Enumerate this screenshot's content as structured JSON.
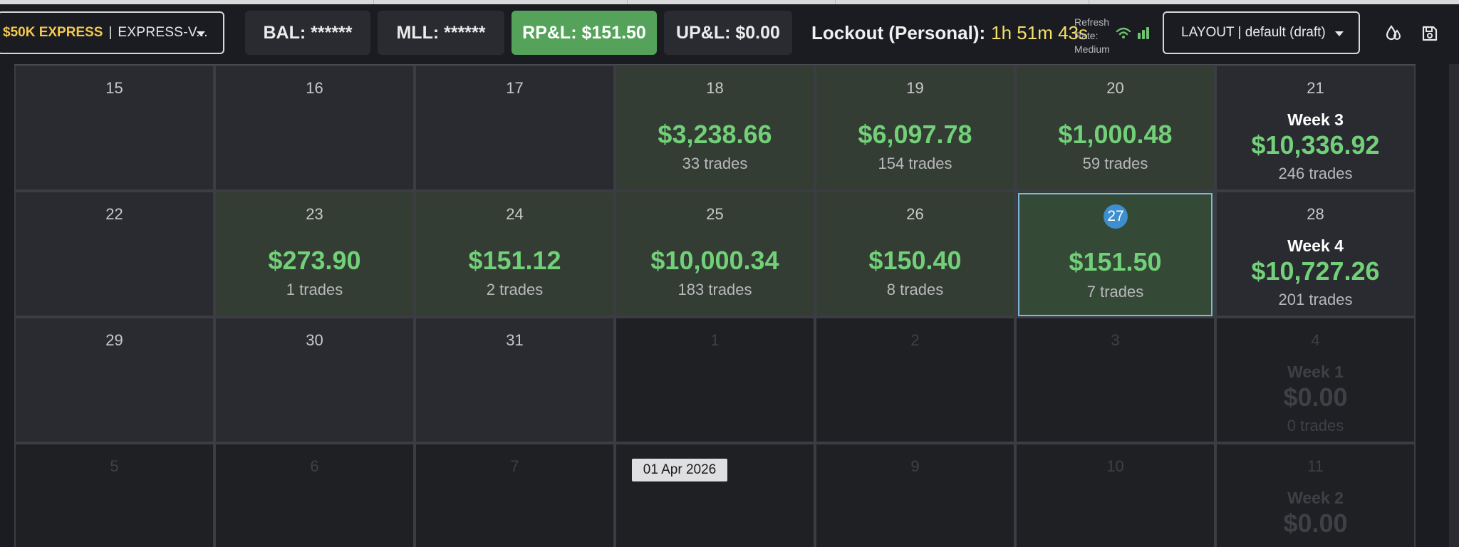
{
  "account": {
    "name": "$50K EXPRESS",
    "separator": "|",
    "sub": "EXPRESS-V..."
  },
  "stats": {
    "bal": "BAL: ******",
    "mll": "MLL: ******",
    "rpl": "RP&L: $151.50",
    "upl": "UP&L: $0.00"
  },
  "lockout": {
    "label": "Lockout (Personal):",
    "value": "1h 51m 43s"
  },
  "refresh": {
    "line1": "Refresh",
    "line2": "Rate:",
    "line3": "Medium"
  },
  "layout": {
    "label": "LAYOUT | default (draft)"
  },
  "calendar": {
    "rows": [
      {
        "days": [
          {
            "day": "15",
            "amount": "",
            "trades": ""
          },
          {
            "day": "16",
            "amount": "",
            "trades": ""
          },
          {
            "day": "17",
            "amount": "",
            "trades": ""
          },
          {
            "day": "18",
            "amount": "$3,238.66",
            "trades": "33 trades"
          },
          {
            "day": "19",
            "amount": "$6,097.78",
            "trades": "154 trades"
          },
          {
            "day": "20",
            "amount": "$1,000.48",
            "trades": "59 trades"
          }
        ],
        "week": {
          "day": "21",
          "label": "Week 3",
          "amount": "$10,336.92",
          "trades": "246 trades"
        }
      },
      {
        "days": [
          {
            "day": "22",
            "amount": "",
            "trades": ""
          },
          {
            "day": "23",
            "amount": "$273.90",
            "trades": "1 trades"
          },
          {
            "day": "24",
            "amount": "$151.12",
            "trades": "2 trades"
          },
          {
            "day": "25",
            "amount": "$10,000.34",
            "trades": "183 trades"
          },
          {
            "day": "26",
            "amount": "$150.40",
            "trades": "8 trades"
          },
          {
            "day": "27",
            "amount": "$151.50",
            "trades": "7 trades"
          }
        ],
        "week": {
          "day": "28",
          "label": "Week 4",
          "amount": "$10,727.26",
          "trades": "201 trades"
        }
      },
      {
        "days": [
          {
            "day": "29",
            "amount": "",
            "trades": ""
          },
          {
            "day": "30",
            "amount": "",
            "trades": ""
          },
          {
            "day": "31",
            "amount": "",
            "trades": ""
          },
          {
            "day": "1",
            "amount": "",
            "trades": ""
          },
          {
            "day": "2",
            "amount": "",
            "trades": ""
          },
          {
            "day": "3",
            "amount": "",
            "trades": ""
          }
        ],
        "week": {
          "day": "4",
          "label": "Week 1",
          "amount": "$0.00",
          "trades": "0 trades"
        }
      },
      {
        "days": [
          {
            "day": "5",
            "amount": "",
            "trades": ""
          },
          {
            "day": "6",
            "amount": "",
            "trades": ""
          },
          {
            "day": "7",
            "amount": "",
            "trades": ""
          },
          {
            "day": "",
            "amount": "",
            "trades": ""
          },
          {
            "day": "9",
            "amount": "",
            "trades": ""
          },
          {
            "day": "10",
            "amount": "",
            "trades": ""
          }
        ],
        "week": {
          "day": "11",
          "label": "Week 2",
          "amount": "$0.00",
          "trades": ""
        }
      }
    ]
  },
  "tooltip": {
    "text": "01 Apr 2026"
  },
  "icons": {
    "refresh_wifi": "wifi-icon",
    "refresh_bars": "signal-bars-icon",
    "theme": "drop-icon",
    "save": "save-icon"
  },
  "colors": {
    "positive": "#71d078",
    "accent_green": "#55a35a",
    "lockout_value": "#f3e06a",
    "today_badge": "#3d8fd0",
    "account_name": "#f2c94c"
  }
}
